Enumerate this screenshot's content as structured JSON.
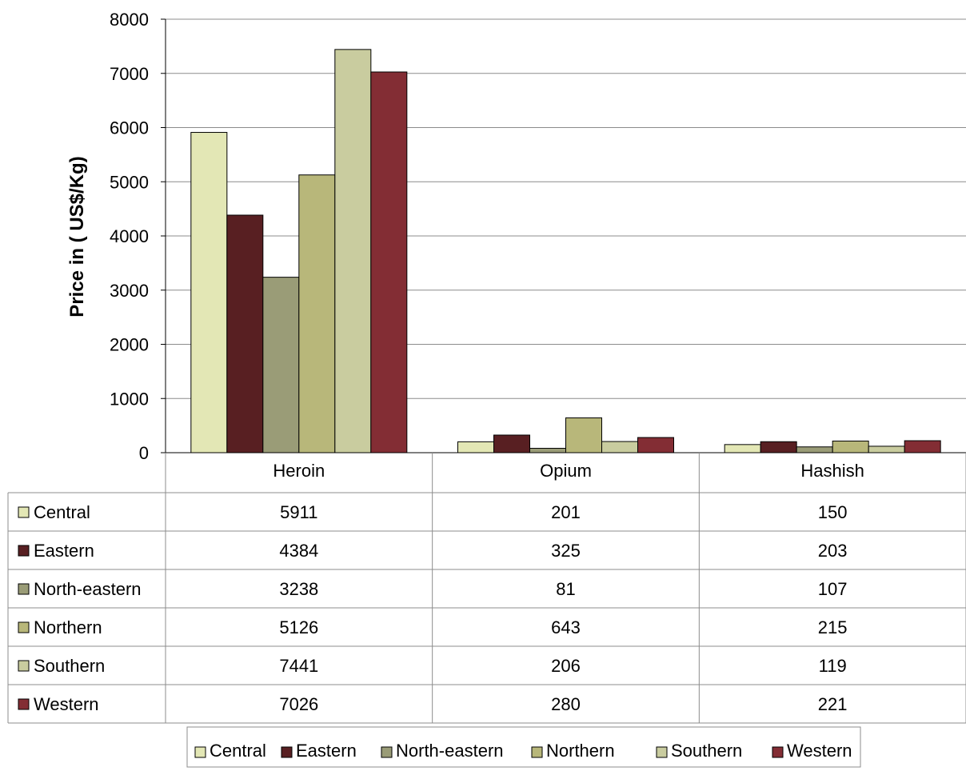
{
  "chart_data": {
    "type": "bar",
    "title": "",
    "xlabel": "",
    "ylabel": "Price in  ( US$/Kg)",
    "ylim": [
      0,
      8000
    ],
    "yticks": [
      0,
      1000,
      2000,
      3000,
      4000,
      5000,
      6000,
      7000,
      8000
    ],
    "grid": true,
    "legend_position": "bottom",
    "categories": [
      "Heroin",
      "Opium",
      "Hashish"
    ],
    "series": [
      {
        "name": "Central",
        "values": [
          5911,
          201,
          150
        ],
        "color": "#E3E7B5"
      },
      {
        "name": "Eastern",
        "values": [
          4384,
          325,
          203
        ],
        "color": "#581F22"
      },
      {
        "name": "North-eastern",
        "values": [
          3238,
          81,
          107
        ],
        "color": "#9A9C77"
      },
      {
        "name": "Northern",
        "values": [
          5126,
          643,
          215
        ],
        "color": "#B8B77A"
      },
      {
        "name": "Southern",
        "values": [
          7441,
          206,
          119
        ],
        "color": "#C9CC9F"
      },
      {
        "name": "Western",
        "values": [
          7026,
          280,
          221
        ],
        "color": "#832D34"
      }
    ],
    "data_table": true
  }
}
